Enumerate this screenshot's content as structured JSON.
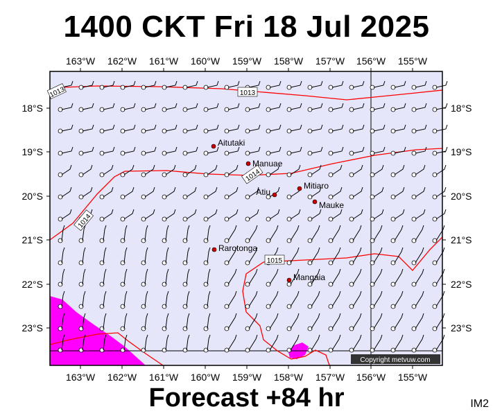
{
  "header": {
    "title": "1400 CKT Fri 18 Jul 2025"
  },
  "footer": {
    "forecast": "Forecast +84 hr",
    "code": "IM2"
  },
  "map": {
    "lon_labels": [
      "163°W",
      "162°W",
      "161°W",
      "160°W",
      "159°W",
      "158°W",
      "157°W",
      "156°W",
      "155°W"
    ],
    "lat_labels": [
      "18°S",
      "19°S",
      "20°S",
      "21°S",
      "22°S",
      "23°S"
    ],
    "copyright": "Copyright metvuw.com",
    "isobar_labels": [
      "1013",
      "1013",
      "1014",
      "1014",
      "1015"
    ],
    "towns": [
      {
        "name": "Aitutaki"
      },
      {
        "name": "Manuae"
      },
      {
        "name": "Mitiaro"
      },
      {
        "name": "Atiu"
      },
      {
        "name": "Mauke"
      },
      {
        "name": "Rarotonga"
      },
      {
        "name": "Mangaia"
      }
    ],
    "colors": {
      "ocean": "#e6e6fa",
      "isobar": "#ff0000",
      "rain": "#ff00ff",
      "town": "#cc0000"
    }
  }
}
